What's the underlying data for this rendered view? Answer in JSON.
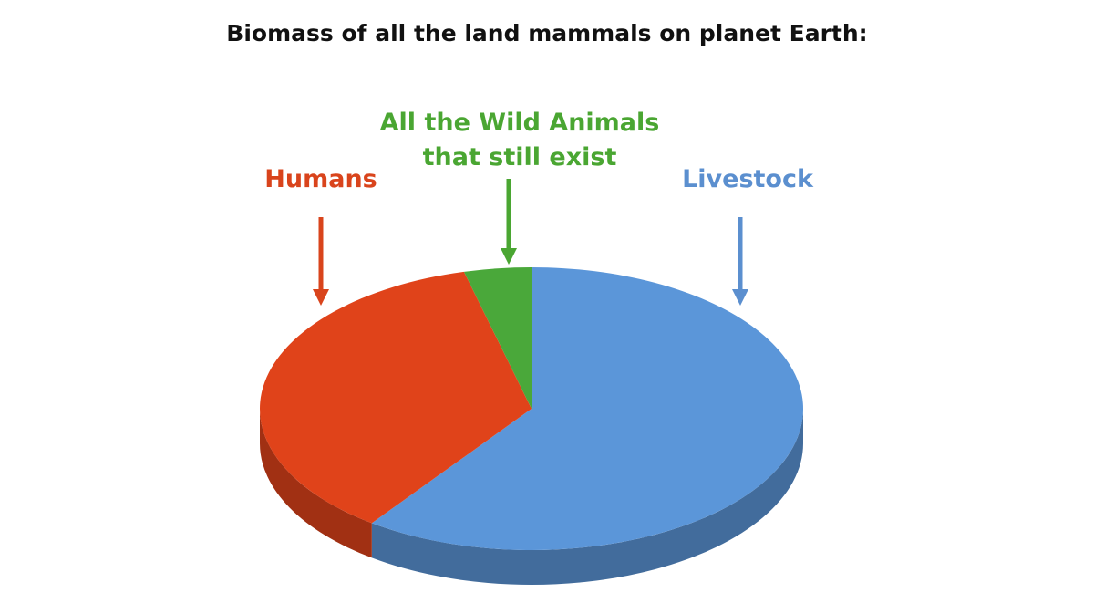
{
  "chart_data": {
    "type": "pie",
    "title": "Biomass of all the land mammals on planet Earth:",
    "categories": [
      "Livestock",
      "Humans",
      "All the Wild Animals\nthat still exist"
    ],
    "values": [
      60,
      36,
      4
    ],
    "colors": [
      "#5b96d9",
      "#e0431a",
      "#4aa83a"
    ]
  }
}
